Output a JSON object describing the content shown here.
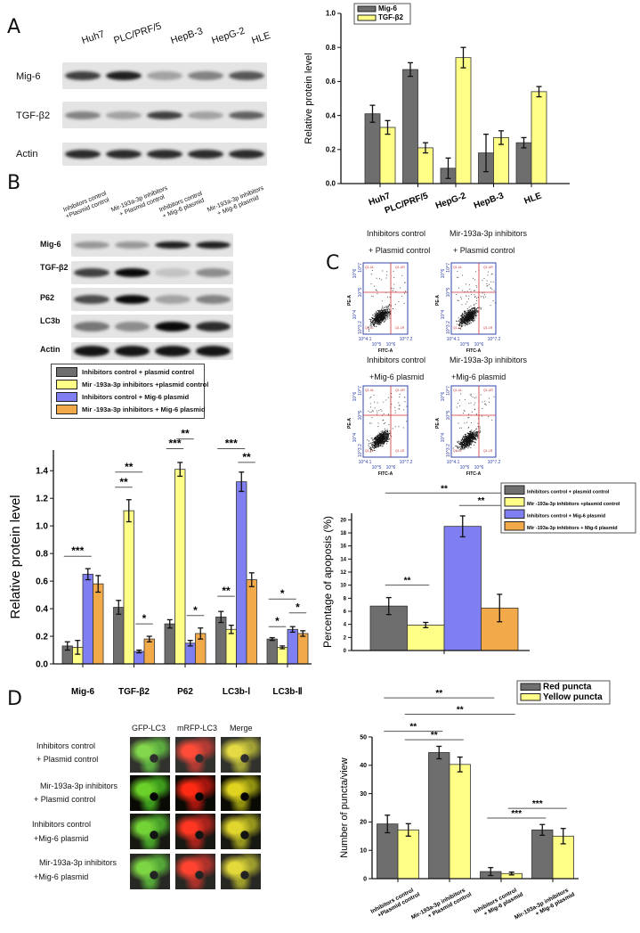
{
  "panel_labels": {
    "a": "A",
    "b": "B",
    "c": "C",
    "d": "D"
  },
  "colors": {
    "gray": "#6e6e6e",
    "yellow": "#ffff88",
    "blue": "#7f7ff2",
    "orange": "#f2a94a"
  },
  "panel_a": {
    "cell_lines": [
      "Huh7",
      "PLC/PRF/5",
      "HepB-3",
      "HepG-2",
      "HLE"
    ],
    "blot_rows": [
      "Mig-6",
      "TGF-β2",
      "Actin"
    ]
  },
  "panel_b": {
    "conditions": [
      {
        "l1": "Inhibitors control",
        "l2": "+Plasmid control"
      },
      {
        "l1": "Mir-193a-3p inhibitors",
        "l2": "+ Plasmid control"
      },
      {
        "l1": "Inhibitors control",
        "l2": "+ Mig-6 plasmid"
      },
      {
        "l1": "Mir-193a-3p inhibitors",
        "l2": "+ Mig-6 plasmid"
      }
    ],
    "blot_rows": [
      "Mig-6",
      "TGF-β2",
      "P62",
      "LC3b",
      "Actin"
    ],
    "legend": [
      "Inhibitors control + plasmid control",
      "Mir -193a-3p inhibitors +plasmid control",
      "Inhibitors control + Mig-6 plasmid",
      "Mir -193a-3p inhibitors + Mig-6 plasmid"
    ]
  },
  "panel_c": {
    "plots": [
      {
        "l1": "Inhibitors control",
        "l2": "+ Plasmid control"
      },
      {
        "l1": "Mir-193a-3p inhibitors",
        "l2": "+ Plasmid control"
      },
      {
        "l1": "Inhibitors control",
        "l2": "+Mig-6 plasmid"
      },
      {
        "l1": "Mir-193a-3p inhibitors",
        "l2": "+Mig-6 plasmid"
      }
    ],
    "x_axis": "FITC-A",
    "y_axis": "PE-A",
    "x_ticks": [
      "10^4.1",
      "10^5",
      "10^6",
      "10^7.2"
    ],
    "y_ticks": [
      "10^3.2",
      "10^4",
      "10^5",
      "10^6",
      "10^7"
    ],
    "quadrants": [
      "Q1-UL",
      "Q1-UR",
      "Q1-LL",
      "Q1-LR"
    ]
  },
  "panel_d": {
    "channels": [
      "GFP-LC3",
      "mRFP-LC3",
      "Merge"
    ],
    "rows": [
      {
        "l1": "Inhibitors control",
        "l2": "+ Plasmid control"
      },
      {
        "l1": "Mir-193a-3p inhibitors",
        "l2": "+ Plasmid control"
      },
      {
        "l1": "Inhibitors control",
        "l2": "+Mig-6 plasmid"
      },
      {
        "l1": "Mir-193a-3p inhibitors",
        "l2": "+Mig-6 plasmid"
      }
    ]
  },
  "chart_data": [
    {
      "id": "a",
      "type": "bar",
      "title": "",
      "xlabel": "",
      "ylabel": "Relative protein level",
      "ylim": [
        0,
        1.0
      ],
      "yticks": [
        0,
        0.2,
        0.4,
        0.6,
        0.8,
        1.0
      ],
      "ytick_labels": [
        "0.0",
        "0.2",
        "0.4",
        "0.6",
        "0.8",
        "1.0"
      ],
      "categories": [
        "Huh7",
        "PLC/PRF/5",
        "HepG-2",
        "HepB-3",
        "HLE"
      ],
      "legend_position": "top-left",
      "grid": false,
      "series": [
        {
          "name": "Mig-6",
          "color": "#6e6e6e",
          "values": [
            0.41,
            0.67,
            0.09,
            0.18,
            0.24
          ],
          "errors": [
            0.05,
            0.04,
            0.06,
            0.11,
            0.03
          ]
        },
        {
          "name": "TGF-β2",
          "color": "#ffff88",
          "values": [
            0.33,
            0.21,
            0.74,
            0.27,
            0.54
          ],
          "errors": [
            0.04,
            0.03,
            0.06,
            0.04,
            0.03
          ]
        }
      ],
      "annotations": []
    },
    {
      "id": "b",
      "type": "bar",
      "title": "",
      "xlabel": "",
      "ylabel": "Relative protein level",
      "ylim": [
        0,
        1.55
      ],
      "yticks": [
        0,
        0.2,
        0.4,
        0.6,
        0.8,
        1.0,
        1.2,
        1.4
      ],
      "ytick_labels": [
        "0.0",
        "0.2",
        "0.4",
        "0.6",
        "0.8",
        "1.0",
        "1.2",
        "1.4"
      ],
      "categories": [
        "Mig-6",
        "TGF-β2",
        "P62",
        "LC3b-Ⅰ",
        "LC3b-Ⅱ"
      ],
      "legend_position": "above (shared with blot)",
      "grid": false,
      "series": [
        {
          "name": "Inhibitors control + plasmid control",
          "color": "#6e6e6e",
          "values": [
            0.13,
            0.41,
            0.29,
            0.34,
            0.18
          ],
          "errors": [
            0.03,
            0.05,
            0.03,
            0.04,
            0.01
          ]
        },
        {
          "name": "Mir -193a-3p inhibitors +plasmid control",
          "color": "#ffff88",
          "values": [
            0.12,
            1.11,
            1.41,
            0.25,
            0.12
          ],
          "errors": [
            0.05,
            0.08,
            0.05,
            0.03,
            0.01
          ]
        },
        {
          "name": "Inhibitors control + Mig-6 plasmid",
          "color": "#7f7ff2",
          "values": [
            0.65,
            0.09,
            0.15,
            1.32,
            0.25
          ],
          "errors": [
            0.04,
            0.01,
            0.02,
            0.07,
            0.02
          ]
        },
        {
          "name": "Mir -193a-3p inhibitors + Mig-6 plasmid",
          "color": "#f2a94a",
          "values": [
            0.58,
            0.18,
            0.22,
            0.61,
            0.22
          ],
          "errors": [
            0.06,
            0.02,
            0.04,
            0.05,
            0.02
          ]
        }
      ],
      "annotations": [
        {
          "label": "***",
          "y": 0.78,
          "from": [
            0,
            0
          ],
          "to": [
            0,
            2
          ]
        },
        {
          "label": "**",
          "y": 1.28,
          "from": [
            1,
            0
          ],
          "to": [
            1,
            1
          ]
        },
        {
          "label": "**",
          "y": 1.39,
          "from": [
            1,
            0
          ],
          "to": [
            1,
            2
          ]
        },
        {
          "label": "*",
          "y": 0.29,
          "from": [
            1,
            2
          ],
          "to": [
            1,
            3
          ]
        },
        {
          "label": "***",
          "y": 1.56,
          "from": [
            2,
            0
          ],
          "to": [
            2,
            1
          ]
        },
        {
          "label": "**",
          "y": 1.63,
          "from": [
            2,
            1
          ],
          "to": [
            2,
            2
          ]
        },
        {
          "label": "*",
          "y": 0.35,
          "from": [
            2,
            2
          ],
          "to": [
            2,
            3
          ]
        },
        {
          "label": "***",
          "y": 1.56,
          "from": [
            3,
            0
          ],
          "to": [
            3,
            2
          ]
        },
        {
          "label": "**",
          "y": 1.46,
          "from": [
            3,
            2
          ],
          "to": [
            3,
            3
          ]
        },
        {
          "label": "**",
          "y": 0.49,
          "from": [
            3,
            0
          ],
          "to": [
            3,
            1
          ]
        },
        {
          "label": "*",
          "y": 0.47,
          "from": [
            4,
            0
          ],
          "to": [
            4,
            2
          ]
        },
        {
          "label": "*",
          "y": 0.27,
          "from": [
            4,
            0
          ],
          "to": [
            4,
            1
          ]
        },
        {
          "label": "*",
          "y": 0.37,
          "from": [
            4,
            2
          ],
          "to": [
            4,
            3
          ]
        }
      ]
    },
    {
      "id": "c",
      "type": "bar",
      "title": "",
      "xlabel": "",
      "ylabel": "Percentage of apoposis (%)",
      "ylim": [
        0,
        21
      ],
      "yticks": [
        0,
        2,
        4,
        6,
        8,
        10,
        12,
        14,
        16,
        18,
        20
      ],
      "ytick_labels": [
        "0",
        "2",
        "4",
        "6",
        "8",
        "10",
        "12",
        "14",
        "16",
        "18",
        "20"
      ],
      "categories": [
        ""
      ],
      "legend_position": "top-right",
      "grid": false,
      "series": [
        {
          "name": "Inhibitors control + plasmid control",
          "color": "#6e6e6e",
          "values": [
            6.8
          ],
          "errors": [
            1.3
          ]
        },
        {
          "name": "Mir -193a-3p inhibitors +plasmid control",
          "color": "#ffff88",
          "values": [
            3.9
          ],
          "errors": [
            0.4
          ]
        },
        {
          "name": "Inhibitors control + Mig-6 plasmid",
          "color": "#7f7ff2",
          "values": [
            19.0
          ],
          "errors": [
            1.6
          ]
        },
        {
          "name": "Mir -193a-3p inhibitors + Mig-6 plasmid",
          "color": "#f2a94a",
          "values": [
            6.5
          ],
          "errors": [
            2.1
          ]
        }
      ],
      "annotations": [
        {
          "label": "**",
          "y": 24.1,
          "from": [
            0,
            0
          ],
          "to": [
            0,
            3
          ]
        },
        {
          "label": "**",
          "y": 22.2,
          "from": [
            0,
            2
          ],
          "to": [
            0,
            3
          ]
        },
        {
          "label": "**",
          "y": 10,
          "from": [
            0,
            0
          ],
          "to": [
            0,
            1
          ]
        }
      ]
    },
    {
      "id": "d",
      "type": "bar",
      "title": "",
      "xlabel": "",
      "ylabel": "Number of puncta/view",
      "ylim": [
        0,
        50
      ],
      "yticks": [
        0,
        10,
        20,
        30,
        40,
        50
      ],
      "ytick_labels": [
        "0",
        "10",
        "20",
        "30",
        "40",
        "50"
      ],
      "categories": [
        "Inhibitors control\n+Plasmid control",
        "Mir-193a-3p inhibitors\n+ Plasmid control",
        "Inhibitors control\n+ Mig-6 plasmid",
        "Mir-193a-3p inhibitors\n+ Mig-6 plasmid"
      ],
      "legend_position": "top-right",
      "grid": false,
      "series": [
        {
          "name": "Red puncta",
          "color": "#6e6e6e",
          "values": [
            19.3,
            44.5,
            2.5,
            17.2
          ],
          "errors": [
            3.1,
            2.2,
            1.4,
            1.9
          ]
        },
        {
          "name": "Yellow puncta",
          "color": "#ffff88",
          "values": [
            17.2,
            40.3,
            1.8,
            15.0
          ],
          "errors": [
            2.2,
            2.6,
            0.5,
            2.7
          ]
        }
      ],
      "annotations": [
        {
          "label": "**",
          "y": 63.8,
          "from": [
            0,
            0
          ],
          "to": [
            2,
            0
          ]
        },
        {
          "label": "**",
          "y": 58,
          "from": [
            0,
            1
          ],
          "to": [
            2,
            1
          ]
        },
        {
          "label": "**",
          "y": 52,
          "from": [
            0,
            0
          ],
          "to": [
            1,
            0
          ]
        },
        {
          "label": "**",
          "y": 49,
          "from": [
            0,
            1
          ],
          "to": [
            1,
            1
          ]
        },
        {
          "label": "***",
          "y": 21.4,
          "from": [
            2,
            0
          ],
          "to": [
            3,
            0
          ]
        },
        {
          "label": "***",
          "y": 24.8,
          "from": [
            2,
            1
          ],
          "to": [
            3,
            1
          ]
        }
      ]
    }
  ]
}
